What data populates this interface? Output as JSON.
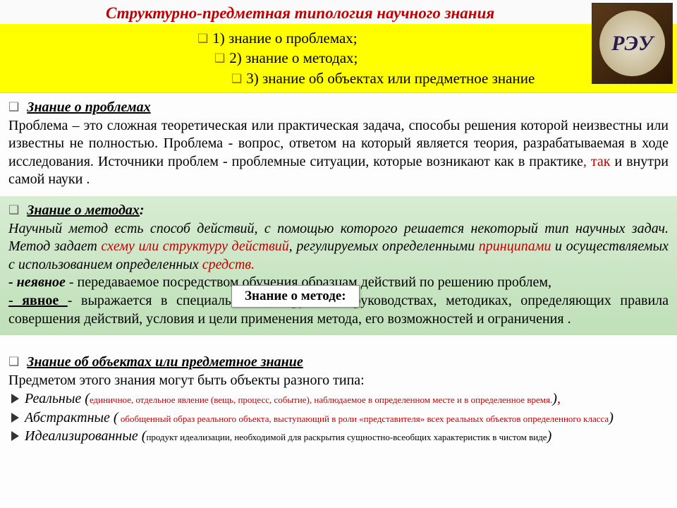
{
  "title": "Структурно-предметная типология научного знания",
  "logo_monogram": "РЭУ",
  "top_list": {
    "item1": "1) знание о проблемах;",
    "item2": "2) знание о методах;",
    "item3": "3) знание об объектах или предметное знание"
  },
  "section1": {
    "heading": "Знание о проблемах",
    "body_before": "Проблема – это сложная теоретическая или практическая задача, способы решения которой неизвестны или известны не полностью. Проблема -  вопрос, ответом на который  является теория, разрабатываемая в ходе исследования.  Источники проблем  - проблемные ситуации, которые возникают как в практике",
    "body_red": ", так",
    "body_after": " и внутри самой науки ."
  },
  "section2": {
    "heading": "Знание о методах",
    "colon": ":",
    "p1a": "Научный метод есть способ действий, с помощью которого решается некоторый тип научных задач.       Метод задает ",
    "p1_red1": "схему или структуру действий",
    "p1b": ", регулируемых определенными ",
    "p1_red2": "принципами",
    "p1c": " и осуществляемых с использованием определенных ",
    "p1_red3": "средств.",
    "p2_label": " - неявное",
    "p2_rest": " - передаваемое посредством обучения образцам действий по решению проблем,",
    "p3_label": "-   явное   ",
    "p3_rest": "-  выражается  в  специальных  инструкциях,  руководствах,  методиках, определяющих правила совершения действий, условия и цели применения метода, его возможностей и ограничения .",
    "tooltip": "Знание о методе:"
  },
  "section3": {
    "heading": "Знание об объектах  или предметное знание",
    "intro": "Предметом этого знания могут быть объекты разного типа:",
    "item1_name": "Реальные ",
    "item1_paren_open": "(",
    "item1_desc": "единичное, отдельное явление (вещь, процесс, событие), наблюдаемое в определенном месте и в определенное время.",
    "item1_paren_close": ")",
    "item1_comma": ",",
    "item2_name": "Абстрактные ",
    "item2_paren_open": "(",
    "item2_desc": " обобщенный образ реального объекта, выступающий в роли «представителя» всех реальных объектов определенного класса",
    "item2_paren_close": ")",
    "item3_name": "Идеализированные ",
    "item3_paren_open": "(",
    "item3_desc": "продукт идеализации, необходимой для раскрытия  сущностно-всеобщих характеристик  в чистом виде",
    "item3_paren_close": ")"
  },
  "colors": {
    "title_red": "#c00000",
    "yellow_bg": "#ffff00",
    "green_bg_top": "#d8ecd3",
    "green_bg_bottom": "#bfe0b8"
  }
}
